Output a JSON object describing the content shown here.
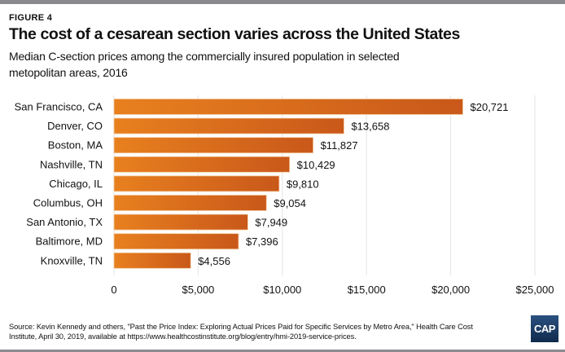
{
  "header": {
    "figure_label": "FIGURE 4",
    "title": "The cost of a cesarean section varies across the United States",
    "subtitle": "Median C-section prices among the commercially insured population in selected metopolitan areas, 2016"
  },
  "footer": {
    "source": "Source: Kevin Kennedy and others, \"Past the Price Index: Exploring Actual Prices Paid for Specific Services by Metro Area,\" Health Care Cost Institute, April 30, 2019, available at https://www.healthcostinstitute.org/blog/entry/hmi-2019-service-prices.",
    "logo_text": "CAP"
  },
  "colors": {
    "bar_start": "#e8801f",
    "bar_end": "#c9581a",
    "grid": "#e3e3e3",
    "logo": "#1c3a63"
  },
  "chart_data": {
    "type": "bar",
    "orientation": "horizontal",
    "title": "The cost of a cesarean section varies across the United States",
    "xlabel": "",
    "ylabel": "",
    "categories": [
      "San Francisco, CA",
      "Denver, CO",
      "Boston, MA",
      "Nashville, TN",
      "Chicago, IL",
      "Columbus, OH",
      "San Antonio, TX",
      "Baltimore, MD",
      "Knoxville, TN"
    ],
    "values": [
      20721,
      13658,
      11827,
      10429,
      9810,
      9054,
      7949,
      7396,
      4556
    ],
    "value_labels": [
      "$20,721",
      "$13,658",
      "$11,827",
      "$10,429",
      "$9,810",
      "$9,054",
      "$7,949",
      "$7,396",
      "$4,556"
    ],
    "xlim": [
      0,
      25000
    ],
    "xticks": [
      0,
      5000,
      10000,
      15000,
      20000,
      25000
    ],
    "xtick_labels": [
      "0",
      "$5,000",
      "$10,000",
      "$15,000",
      "$20,000",
      "$25,000"
    ],
    "grid": true,
    "legend": "none"
  }
}
